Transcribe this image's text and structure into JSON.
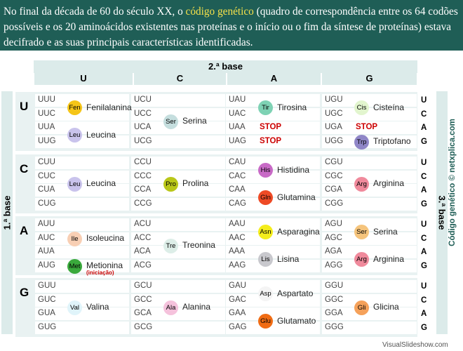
{
  "intro": {
    "part1": "No final da década de 60 do século XX, o ",
    "highlight": "código genético",
    "part2": " (quadro de correspondência entre os 64 codões possíveis e os 20 aminoácidos existentes nas proteínas e o início ou o fim da síntese de proteínas) estava decifrado e as suas principais características identificadas."
  },
  "second_base_label": "2.ª base",
  "first_base_label": "1.ª base",
  "third_base_label": "3.ª base",
  "credit": "Código genético © netxplica.com",
  "watermark": "VisualSlideshow.com",
  "columns": [
    "U",
    "C",
    "A",
    "G"
  ],
  "rows": [
    {
      "letter": "U",
      "third": [
        "U",
        "C",
        "A",
        "G"
      ],
      "codons": [
        [
          "UUU",
          "UUC",
          "UUA",
          "UUG"
        ],
        [
          "UCU",
          "UCC",
          "UCA",
          "UCG"
        ],
        [
          "UAU",
          "UAC",
          "UAA",
          "UAG"
        ],
        [
          "UGU",
          "UGC",
          "UGA",
          "UGG"
        ]
      ]
    },
    {
      "letter": "C",
      "third": [
        "U",
        "C",
        "A",
        "G"
      ],
      "codons": [
        [
          "CUU",
          "CUC",
          "CUA",
          "CUG"
        ],
        [
          "CCU",
          "CCC",
          "CCA",
          "CCG"
        ],
        [
          "CAU",
          "CAC",
          "CAA",
          "CAG"
        ],
        [
          "CGU",
          "CGC",
          "CGA",
          "CGG"
        ]
      ]
    },
    {
      "letter": "A",
      "third": [
        "U",
        "C",
        "A",
        "G"
      ],
      "codons": [
        [
          "AUU",
          "AUC",
          "AUA",
          "AUG"
        ],
        [
          "ACU",
          "ACC",
          "ACA",
          "ACG"
        ],
        [
          "AAU",
          "AAC",
          "AAA",
          "AAG"
        ],
        [
          "AGU",
          "AGC",
          "AGA",
          "AGG"
        ]
      ]
    },
    {
      "letter": "G",
      "third": [
        "U",
        "C",
        "A",
        "G"
      ],
      "codons": [
        [
          "GUU",
          "GUC",
          "GUA",
          "GUG"
        ],
        [
          "GCU",
          "GCC",
          "GCA",
          "GCG"
        ],
        [
          "GAU",
          "GAC",
          "GAA",
          "GAG"
        ],
        [
          "GGU",
          "GGC",
          "GGA",
          "GGG"
        ]
      ]
    }
  ],
  "amino_acids": {
    "fen": {
      "abbr": "Fen",
      "name": "Fenilalanina",
      "color": "#f5c518"
    },
    "leu1": {
      "abbr": "Leu",
      "name": "Leucina",
      "color": "#c9c3ec"
    },
    "ser1": {
      "abbr": "Ser",
      "name": "Serina",
      "color": "#c5dede"
    },
    "tir": {
      "abbr": "Tir",
      "name": "Tirosina",
      "color": "#7ed2b4"
    },
    "cis": {
      "abbr": "Cis",
      "name": "Cisteína",
      "color": "#e2f5ce"
    },
    "trp": {
      "abbr": "Trp",
      "name": "Triptofano",
      "color": "#8f86c7"
    },
    "leu2": {
      "abbr": "Leu",
      "name": "Leucina",
      "color": "#c9c3ec"
    },
    "pro": {
      "abbr": "Pro",
      "name": "Prolina",
      "color": "#b9c719"
    },
    "his": {
      "abbr": "His",
      "name": "Histidina",
      "color": "#c86ac6"
    },
    "gln": {
      "abbr": "Gln",
      "name": "Glutamina",
      "color": "#ee4a25"
    },
    "arg1": {
      "abbr": "Arg",
      "name": "Arginina",
      "color": "#f08a9c"
    },
    "ile": {
      "abbr": "Ile",
      "name": "Isoleucina",
      "color": "#f8cfb4"
    },
    "met": {
      "abbr": "Met",
      "name": "Metionina",
      "color": "#3aa93c",
      "note": "(iniciação)"
    },
    "thr": {
      "abbr": "Tre",
      "name": "Treonina",
      "color": "#ddeee8"
    },
    "asn": {
      "abbr": "Asn",
      "name": "Asparagina",
      "color": "#f4ed1c"
    },
    "lis": {
      "abbr": "Lis",
      "name": "Lisina",
      "color": "#c8c8cd"
    },
    "ser2": {
      "abbr": "Ser",
      "name": "Serina",
      "color": "#f5c47c"
    },
    "arg2": {
      "abbr": "Arg",
      "name": "Arginina",
      "color": "#f08a9c"
    },
    "val": {
      "abbr": "Val",
      "name": "Valina",
      "color": "#e0f4fa"
    },
    "ala": {
      "abbr": "Ala",
      "name": "Alanina",
      "color": "#f5c2dc"
    },
    "asp": {
      "abbr": "Asp",
      "name": "Aspartato",
      "color": "#f4f4f4"
    },
    "glu": {
      "abbr": "Glu",
      "name": "Glutamato",
      "color": "#f06c14"
    },
    "gli": {
      "abbr": "Gli",
      "name": "Glicina",
      "color": "#f5a15a"
    }
  },
  "stop_label": "STOP"
}
